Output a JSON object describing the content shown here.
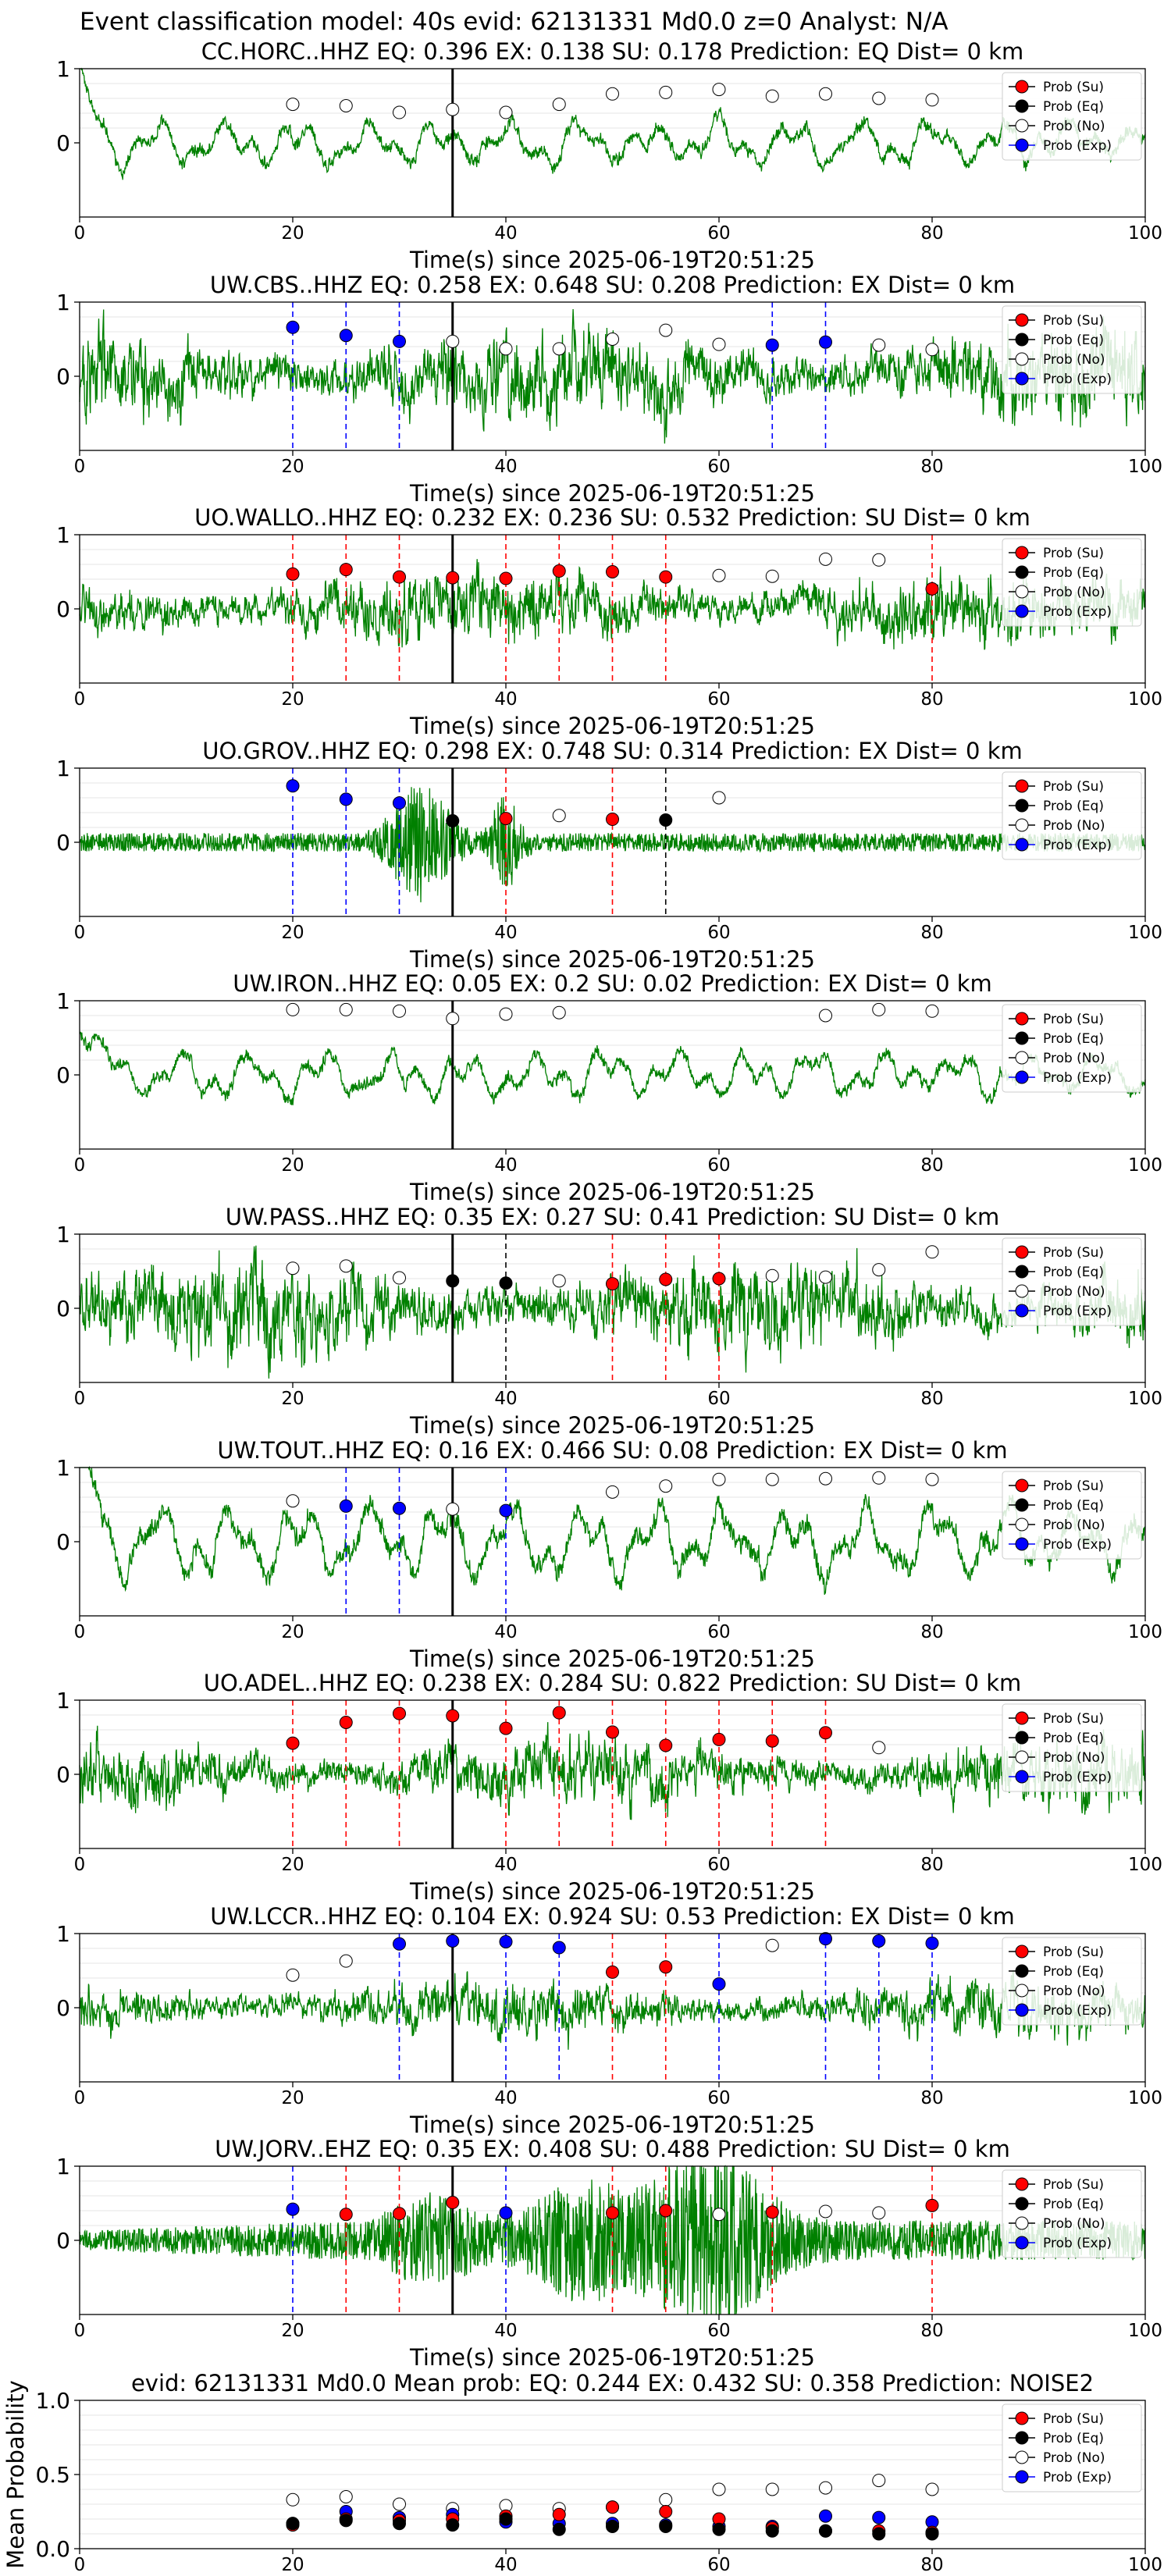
{
  "suptitle": "Event classification model: 40s evid: 62131331 Md0.0 z=0 Analyst: N/A",
  "colors": {
    "waveform": "#008000",
    "su": "#ff0000",
    "eq": "#000000",
    "no": "#ffffff",
    "exp": "#0000ff",
    "origin_line": "#000000"
  },
  "legend": {
    "position": "upper-right",
    "entries": [
      "Prob (Su)",
      "Prob (Eq)",
      "Prob (No)",
      "Prob (Exp)"
    ]
  },
  "chart_data": [
    {
      "type": "line",
      "title": "CC.HORC..HHZ   EQ: 0.396  EX: 0.138  SU: 0.178   Prediction: EQ    Dist= 0 km",
      "xlabel": "Time(s) since 2025-06-19T20:51:25",
      "ylabel": "",
      "xlim": [
        0,
        100
      ],
      "ylim": [
        -1,
        1
      ],
      "xticks": [
        0,
        20,
        40,
        60,
        80,
        100
      ],
      "yticks": [
        0,
        1
      ],
      "origin_time": 35,
      "waveform_style": "lowfreq",
      "waveform_amp": 0.35,
      "prob_x": [
        20,
        25,
        30,
        35,
        40,
        45,
        50,
        55,
        60,
        65,
        70,
        75,
        80
      ],
      "classes": [
        "No",
        "No",
        "No",
        "No",
        "No",
        "No",
        "No",
        "No",
        "No",
        "No",
        "No",
        "No",
        "No"
      ],
      "probs": [
        0.52,
        0.5,
        0.41,
        0.45,
        0.41,
        0.52,
        0.66,
        0.68,
        0.72,
        0.63,
        0.66,
        0.6,
        0.58
      ]
    },
    {
      "type": "line",
      "title": "UW.CBS..HHZ   EQ: 0.258  EX: 0.648  SU: 0.208   Prediction: EX    Dist= 0 km",
      "xlabel": "Time(s) since 2025-06-19T20:51:25",
      "ylabel": "",
      "xlim": [
        0,
        100
      ],
      "ylim": [
        -1,
        1
      ],
      "xticks": [
        0,
        20,
        40,
        60,
        80,
        100
      ],
      "yticks": [
        0,
        1
      ],
      "origin_time": 35,
      "waveform_style": "noisy",
      "waveform_amp": 0.75,
      "prob_x": [
        20,
        25,
        30,
        35,
        40,
        45,
        50,
        55,
        60,
        65,
        70,
        75,
        80
      ],
      "classes": [
        "Exp",
        "Exp",
        "Exp",
        "No",
        "No",
        "No",
        "No",
        "No",
        "No",
        "Exp",
        "Exp",
        "No",
        "No"
      ],
      "probs": [
        0.66,
        0.55,
        0.47,
        0.47,
        0.37,
        0.37,
        0.5,
        0.62,
        0.43,
        0.42,
        0.46,
        0.42,
        0.36
      ]
    },
    {
      "type": "line",
      "title": "UO.WALLO..HHZ   EQ: 0.232  EX: 0.236  SU: 0.532   Prediction: SU    Dist= 0 km",
      "xlabel": "Time(s) since 2025-06-19T20:51:25",
      "ylabel": "",
      "xlim": [
        0,
        100
      ],
      "ylim": [
        -1,
        1
      ],
      "xticks": [
        0,
        20,
        40,
        60,
        80,
        100
      ],
      "yticks": [
        0,
        1
      ],
      "origin_time": 35,
      "waveform_style": "noisy",
      "waveform_amp": 0.6,
      "prob_x": [
        20,
        25,
        30,
        35,
        40,
        45,
        50,
        55,
        60,
        65,
        70,
        75,
        80
      ],
      "classes": [
        "Su",
        "Su",
        "Su",
        "Su",
        "Su",
        "Su",
        "Su",
        "Su",
        "No",
        "No",
        "No",
        "No",
        "Su"
      ],
      "probs": [
        0.47,
        0.53,
        0.43,
        0.42,
        0.41,
        0.51,
        0.5,
        0.43,
        0.45,
        0.44,
        0.67,
        0.66,
        0.27
      ]
    },
    {
      "type": "line",
      "title": "UO.GROV..HHZ   EQ: 0.298  EX: 0.748  SU: 0.314   Prediction: EX    Dist= 0 km",
      "xlabel": "Time(s) since 2025-06-19T20:51:25",
      "ylabel": "",
      "xlim": [
        0,
        100
      ],
      "ylim": [
        -1,
        1
      ],
      "xticks": [
        0,
        20,
        40,
        60,
        80,
        100
      ],
      "yticks": [
        0,
        1
      ],
      "origin_time": 35,
      "waveform_style": "burst",
      "waveform_amp": 0.25,
      "prob_x": [
        20,
        25,
        30,
        35,
        40,
        45,
        50,
        55,
        60
      ],
      "classes": [
        "Exp",
        "Exp",
        "Exp",
        "Eq",
        "Su",
        "No",
        "Su",
        "Eq",
        "No"
      ],
      "probs": [
        0.76,
        0.58,
        0.53,
        0.29,
        0.32,
        0.36,
        0.31,
        0.3,
        0.6
      ]
    },
    {
      "type": "line",
      "title": "UW.IRON..HHZ   EQ: 0.05  EX: 0.2  SU: 0.02   Prediction: EX    Dist= 0 km",
      "xlabel": "Time(s) since 2025-06-19T20:51:25",
      "ylabel": "",
      "xlim": [
        0,
        100
      ],
      "ylim": [
        -1,
        1
      ],
      "xticks": [
        0,
        20,
        40,
        60,
        80,
        100
      ],
      "yticks": [
        0,
        1
      ],
      "origin_time": 35,
      "waveform_style": "lowfreq",
      "waveform_amp": 0.35,
      "prob_x": [
        20,
        25,
        30,
        35,
        40,
        45,
        70,
        75,
        80
      ],
      "classes": [
        "No",
        "No",
        "No",
        "No",
        "No",
        "No",
        "No",
        "No",
        "No"
      ],
      "probs": [
        0.88,
        0.88,
        0.86,
        0.76,
        0.82,
        0.84,
        0.8,
        0.88,
        0.86
      ]
    },
    {
      "type": "line",
      "title": "UW.PASS..HHZ   EQ: 0.35  EX: 0.27  SU: 0.41   Prediction: SU    Dist= 0 km",
      "xlabel": "Time(s) since 2025-06-19T20:51:25",
      "ylabel": "",
      "xlim": [
        0,
        100
      ],
      "ylim": [
        -1,
        1
      ],
      "xticks": [
        0,
        20,
        40,
        60,
        80,
        100
      ],
      "yticks": [
        0,
        1
      ],
      "origin_time": 35,
      "waveform_style": "noisy",
      "waveform_amp": 0.75,
      "prob_x": [
        20,
        25,
        30,
        35,
        40,
        45,
        50,
        55,
        60,
        65,
        70,
        75,
        80
      ],
      "classes": [
        "No",
        "No",
        "No",
        "Eq",
        "Eq",
        "No",
        "Su",
        "Su",
        "Su",
        "No",
        "No",
        "No",
        "No"
      ],
      "probs": [
        0.54,
        0.57,
        0.41,
        0.37,
        0.34,
        0.37,
        0.33,
        0.39,
        0.4,
        0.44,
        0.42,
        0.52,
        0.76
      ]
    },
    {
      "type": "line",
      "title": "UW.TOUT..HHZ   EQ: 0.16  EX: 0.466  SU: 0.08   Prediction: EX    Dist= 0 km",
      "xlabel": "Time(s) since 2025-06-19T20:51:25",
      "ylabel": "",
      "xlim": [
        0,
        100
      ],
      "ylim": [
        -1,
        1
      ],
      "xticks": [
        0,
        20,
        40,
        60,
        80,
        100
      ],
      "yticks": [
        0,
        1
      ],
      "origin_time": 35,
      "waveform_style": "lowfreq",
      "waveform_amp": 0.55,
      "prob_x": [
        20,
        25,
        30,
        35,
        40,
        50,
        55,
        60,
        65,
        70,
        75,
        80
      ],
      "classes": [
        "No",
        "Exp",
        "Exp",
        "No",
        "Exp",
        "No",
        "No",
        "No",
        "No",
        "No",
        "No",
        "No"
      ],
      "probs": [
        0.55,
        0.48,
        0.45,
        0.44,
        0.42,
        0.67,
        0.75,
        0.84,
        0.84,
        0.85,
        0.86,
        0.84
      ]
    },
    {
      "type": "line",
      "title": "UO.ADEL..HHZ   EQ: 0.238  EX: 0.284  SU: 0.822   Prediction: SU    Dist= 0 km",
      "xlabel": "Time(s) since 2025-06-19T20:51:25",
      "ylabel": "",
      "xlim": [
        0,
        100
      ],
      "ylim": [
        -1,
        1
      ],
      "xticks": [
        0,
        20,
        40,
        60,
        80,
        100
      ],
      "yticks": [
        0,
        1
      ],
      "origin_time": 35,
      "waveform_style": "noisy",
      "waveform_amp": 0.55,
      "prob_x": [
        20,
        25,
        30,
        35,
        40,
        45,
        50,
        55,
        60,
        65,
        70,
        75
      ],
      "classes": [
        "Su",
        "Su",
        "Su",
        "Su",
        "Su",
        "Su",
        "Su",
        "Su",
        "Su",
        "Su",
        "Su",
        "No"
      ],
      "probs": [
        0.42,
        0.7,
        0.82,
        0.79,
        0.62,
        0.83,
        0.57,
        0.39,
        0.47,
        0.45,
        0.56,
        0.36
      ]
    },
    {
      "type": "line",
      "title": "UW.LCCR..HHZ   EQ: 0.104  EX: 0.924  SU: 0.53   Prediction: EX    Dist= 0 km",
      "xlabel": "Time(s) since 2025-06-19T20:51:25",
      "ylabel": "",
      "xlim": [
        0,
        100
      ],
      "ylim": [
        -1,
        1
      ],
      "xticks": [
        0,
        20,
        40,
        60,
        80,
        100
      ],
      "yticks": [
        0,
        1
      ],
      "origin_time": 35,
      "waveform_style": "noisy",
      "waveform_amp": 0.45,
      "prob_x": [
        20,
        25,
        30,
        35,
        40,
        45,
        50,
        55,
        60,
        65,
        70,
        75,
        80
      ],
      "classes": [
        "No",
        "No",
        "Exp",
        "Exp",
        "Exp",
        "Exp",
        "Su",
        "Su",
        "Exp",
        "No",
        "Exp",
        "Exp",
        "Exp"
      ],
      "probs": [
        0.44,
        0.63,
        0.86,
        0.9,
        0.89,
        0.81,
        0.48,
        0.55,
        0.32,
        0.84,
        0.93,
        0.9,
        0.87
      ]
    },
    {
      "type": "line",
      "title": "UW.JORV..EHZ   EQ: 0.35  EX: 0.408  SU: 0.488   Prediction: SU    Dist= 0 km",
      "xlabel": "Time(s) since 2025-06-19T20:51:25",
      "ylabel": "",
      "xlim": [
        0,
        100
      ],
      "ylim": [
        -1,
        1
      ],
      "xticks": [
        0,
        20,
        40,
        60,
        80,
        100
      ],
      "yticks": [
        0,
        1
      ],
      "origin_time": 35,
      "waveform_style": "spindle",
      "waveform_amp": 0.7,
      "prob_x": [
        20,
        25,
        30,
        35,
        40,
        50,
        55,
        60,
        65,
        70,
        75,
        80
      ],
      "classes": [
        "Exp",
        "Su",
        "Su",
        "Su",
        "Exp",
        "Su",
        "Su",
        "No",
        "Su",
        "No",
        "No",
        "Su"
      ],
      "probs": [
        0.42,
        0.35,
        0.36,
        0.51,
        0.37,
        0.37,
        0.4,
        0.35,
        0.38,
        0.39,
        0.37,
        0.47
      ]
    },
    {
      "type": "scatter",
      "title": "evid: 62131331  Md0.0   Mean prob:   EQ: 0.244  EX: 0.432  SU: 0.358   Prediction: NOISE2",
      "xlabel": "",
      "ylabel": "Mean Probability",
      "xlim": [
        0,
        100
      ],
      "ylim": [
        0,
        1
      ],
      "xticks": [
        0,
        20,
        40,
        60,
        80,
        100
      ],
      "yticks": [
        0.0,
        0.5,
        1.0
      ],
      "ytick_labels": [
        "0.0",
        "0.5",
        "1.0"
      ],
      "x": [
        20,
        25,
        30,
        35,
        40,
        45,
        50,
        55,
        60,
        65,
        70,
        75,
        80
      ],
      "series": [
        {
          "name": "Prob (No)",
          "class": "No",
          "values": [
            0.33,
            0.35,
            0.3,
            0.27,
            0.29,
            0.27,
            0.28,
            0.33,
            0.4,
            0.4,
            0.41,
            0.46,
            0.4
          ]
        },
        {
          "name": "Prob (Exp)",
          "class": "Exp",
          "values": [
            0.17,
            0.25,
            0.21,
            0.23,
            0.18,
            0.17,
            0.17,
            0.16,
            0.15,
            0.15,
            0.22,
            0.21,
            0.18
          ]
        },
        {
          "name": "Prob (Su)",
          "class": "Su",
          "values": [
            0.16,
            0.2,
            0.19,
            0.2,
            0.22,
            0.23,
            0.28,
            0.25,
            0.2,
            0.14,
            0.12,
            0.12,
            0.11
          ]
        },
        {
          "name": "Prob (Eq)",
          "class": "Eq",
          "values": [
            0.17,
            0.19,
            0.17,
            0.16,
            0.2,
            0.13,
            0.15,
            0.15,
            0.13,
            0.12,
            0.12,
            0.1,
            0.1
          ]
        }
      ]
    }
  ]
}
